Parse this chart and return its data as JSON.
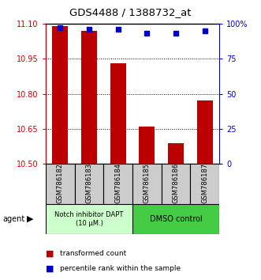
{
  "title": "GDS4488 / 1388732_at",
  "samples": [
    "GSM786182",
    "GSM786183",
    "GSM786184",
    "GSM786185",
    "GSM786186",
    "GSM786187"
  ],
  "red_values": [
    11.09,
    11.07,
    10.93,
    10.66,
    10.59,
    10.77
  ],
  "blue_values": [
    97,
    96,
    96,
    93,
    93,
    95
  ],
  "ylim_left": [
    10.5,
    11.1
  ],
  "ylim_right": [
    0,
    100
  ],
  "yticks_left": [
    10.5,
    10.65,
    10.8,
    10.95,
    11.1
  ],
  "yticks_right": [
    0,
    25,
    50,
    75,
    100
  ],
  "ytick_labels_right": [
    "0",
    "25",
    "50",
    "75",
    "100%"
  ],
  "bar_color": "#bb0000",
  "dot_color": "#0000cc",
  "bar_width": 0.55,
  "group1_label": "Notch inhibitor DAPT\n(10 μM.)",
  "group2_label": "DMSO control",
  "group1_color": "#ccffcc",
  "group2_color": "#44cc44",
  "agent_label": "agent",
  "legend_red": "transformed count",
  "legend_blue": "percentile rank within the sample",
  "grid_color": "black",
  "left_tick_color": "#cc0000",
  "right_tick_color": "#0000cc",
  "base_value": 10.5,
  "label_bg": "#cccccc"
}
